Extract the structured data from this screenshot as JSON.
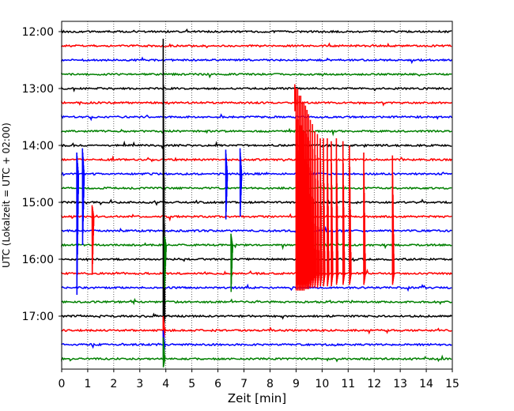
{
  "chart_data": {
    "type": "line",
    "title": "",
    "xlabel": "Zeit  [min]",
    "ylabel": "UTC (Lokalzeit = UTC + 02:00)",
    "xlim": [
      0,
      15
    ],
    "x_ticks": [
      "0",
      "1",
      "2",
      "3",
      "4",
      "5",
      "6",
      "7",
      "8",
      "9",
      "10",
      "11",
      "12",
      "13",
      "14",
      "15"
    ],
    "y_tick_labels": [
      "12:00",
      "13:00",
      "14:00",
      "15:00",
      "16:00",
      "17:00"
    ],
    "grid": "vertical dotted",
    "rows_per_hour": 4,
    "trace_count": 24,
    "first_trace": "12:00",
    "trace_colors": [
      "#000000",
      "#ff0000",
      "#0000ff",
      "#008000"
    ],
    "events": [
      {
        "row": 20,
        "x": 3.9,
        "amp_up": 19.5,
        "amp_down": 1.2
      },
      {
        "row": 21,
        "x": 3.9,
        "amp_up": 1.0,
        "amp_down": 1.0
      },
      {
        "row": 22,
        "x": 3.9,
        "amp_up": 1.0,
        "amp_down": 1.0
      },
      {
        "row": 23,
        "x": 3.9,
        "amp_up": 1.5,
        "amp_down": 0.6
      },
      {
        "row": 15,
        "x": 3.95,
        "amp_up": 0.6,
        "amp_down": 3.0
      },
      {
        "row": 10,
        "x": 0.58,
        "amp_up": 1.5,
        "amp_down": 8.5
      },
      {
        "row": 10,
        "x": 0.8,
        "amp_up": 1.8,
        "amp_down": 5.0
      },
      {
        "row": 13,
        "x": 1.17,
        "amp_up": 0.8,
        "amp_down": 4.0
      },
      {
        "row": 10,
        "x": 6.3,
        "amp_up": 1.7,
        "amp_down": 3.2
      },
      {
        "row": 15,
        "x": 6.5,
        "amp_up": 0.8,
        "amp_down": 3.3
      },
      {
        "row": 10,
        "x": 6.85,
        "amp_up": 1.8,
        "amp_down": 3.0
      },
      {
        "row": 17,
        "x": 9.0,
        "amp_up": 13.0,
        "amp_down": 1.2
      },
      {
        "row": 17,
        "x": 9.06,
        "amp_up": 13.0,
        "amp_down": 1.2
      },
      {
        "row": 17,
        "x": 9.12,
        "amp_up": 12.5,
        "amp_down": 1.2
      },
      {
        "row": 17,
        "x": 9.18,
        "amp_up": 12.5,
        "amp_down": 1.2
      },
      {
        "row": 17,
        "x": 9.24,
        "amp_up": 12.0,
        "amp_down": 1.2
      },
      {
        "row": 17,
        "x": 9.3,
        "amp_up": 12.0,
        "amp_down": 1.2
      },
      {
        "row": 17,
        "x": 9.36,
        "amp_up": 11.8,
        "amp_down": 1.1
      },
      {
        "row": 17,
        "x": 9.42,
        "amp_up": 11.5,
        "amp_down": 1.1
      },
      {
        "row": 17,
        "x": 9.48,
        "amp_up": 11.2,
        "amp_down": 1.1
      },
      {
        "row": 17,
        "x": 9.55,
        "amp_up": 10.8,
        "amp_down": 1.0
      },
      {
        "row": 17,
        "x": 9.63,
        "amp_up": 10.5,
        "amp_down": 1.0
      },
      {
        "row": 17,
        "x": 9.72,
        "amp_up": 10.0,
        "amp_down": 1.0
      },
      {
        "row": 17,
        "x": 9.82,
        "amp_up": 9.8,
        "amp_down": 1.0
      },
      {
        "row": 17,
        "x": 9.93,
        "amp_up": 9.5,
        "amp_down": 0.9
      },
      {
        "row": 17,
        "x": 10.05,
        "amp_up": 9.5,
        "amp_down": 0.9
      },
      {
        "row": 17,
        "x": 10.2,
        "amp_up": 9.5,
        "amp_down": 0.9
      },
      {
        "row": 17,
        "x": 10.35,
        "amp_up": 9.3,
        "amp_down": 0.9
      },
      {
        "row": 17,
        "x": 10.55,
        "amp_up": 9.5,
        "amp_down": 0.8
      },
      {
        "row": 17,
        "x": 10.8,
        "amp_up": 9.3,
        "amp_down": 0.8
      },
      {
        "row": 17,
        "x": 11.05,
        "amp_up": 9.0,
        "amp_down": 0.8
      },
      {
        "row": 17,
        "x": 11.6,
        "amp_up": 8.5,
        "amp_down": 0.8
      },
      {
        "row": 17,
        "x": 12.7,
        "amp_up": 8.3,
        "amp_down": 0.8
      },
      {
        "row": 5,
        "x": 8.95,
        "amp_up": 1.3,
        "amp_down": 0.6
      }
    ]
  }
}
